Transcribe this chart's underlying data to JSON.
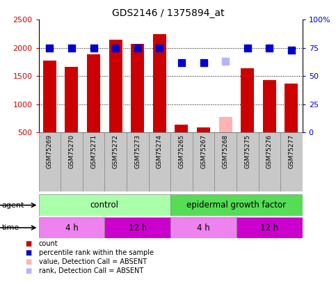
{
  "title": "GDS2146 / 1375894_at",
  "samples": [
    "GSM75269",
    "GSM75270",
    "GSM75271",
    "GSM75272",
    "GSM75273",
    "GSM75274",
    "GSM75265",
    "GSM75267",
    "GSM75268",
    "GSM75275",
    "GSM75276",
    "GSM75277"
  ],
  "count_values": [
    1770,
    1665,
    1885,
    2145,
    2070,
    2240,
    645,
    590,
    null,
    1640,
    1435,
    1365
  ],
  "count_absent": [
    null,
    null,
    null,
    null,
    null,
    null,
    null,
    null,
    780,
    null,
    null,
    null
  ],
  "percentile_values": [
    75,
    75,
    75,
    75,
    75,
    75,
    62,
    62,
    null,
    75,
    75,
    73
  ],
  "percentile_absent": [
    null,
    null,
    null,
    null,
    null,
    null,
    null,
    null,
    63,
    null,
    null,
    null
  ],
  "bar_color": "#cc0000",
  "bar_absent_color": "#ffb3b3",
  "dot_color": "#0000cc",
  "dot_absent_color": "#b3b3ff",
  "ylim_left": [
    500,
    2500
  ],
  "ylim_right": [
    0,
    100
  ],
  "yticks_left": [
    500,
    1000,
    1500,
    2000,
    2500
  ],
  "yticks_right": [
    0,
    25,
    50,
    75,
    100
  ],
  "yticklabels_right": [
    "0",
    "25",
    "50",
    "75",
    "100%"
  ],
  "grid_values": [
    1000,
    1500,
    2000
  ],
  "agent_control_label": "control",
  "agent_egf_label": "epidermal growth factor",
  "agent_control_color": "#aaffaa",
  "agent_egf_color": "#55dd55",
  "time_4h_color_light": "#ee82ee",
  "time_12h_color_dark": "#cc00cc",
  "time_label_4h": "4 h",
  "time_label_12h": "12 h",
  "legend_items": [
    {
      "label": "count",
      "color": "#cc0000"
    },
    {
      "label": "percentile rank within the sample",
      "color": "#0000cc"
    },
    {
      "label": "value, Detection Call = ABSENT",
      "color": "#ffb3b3"
    },
    {
      "label": "rank, Detection Call = ABSENT",
      "color": "#b3b3ff"
    }
  ],
  "bar_width": 0.6,
  "dot_size": 45,
  "tick_color_left": "#cc0000",
  "tick_color_right": "#0000cc",
  "background_color": "#ffffff",
  "xticklabel_bg": "#c8c8c8",
  "xticklabel_edge": "#888888"
}
